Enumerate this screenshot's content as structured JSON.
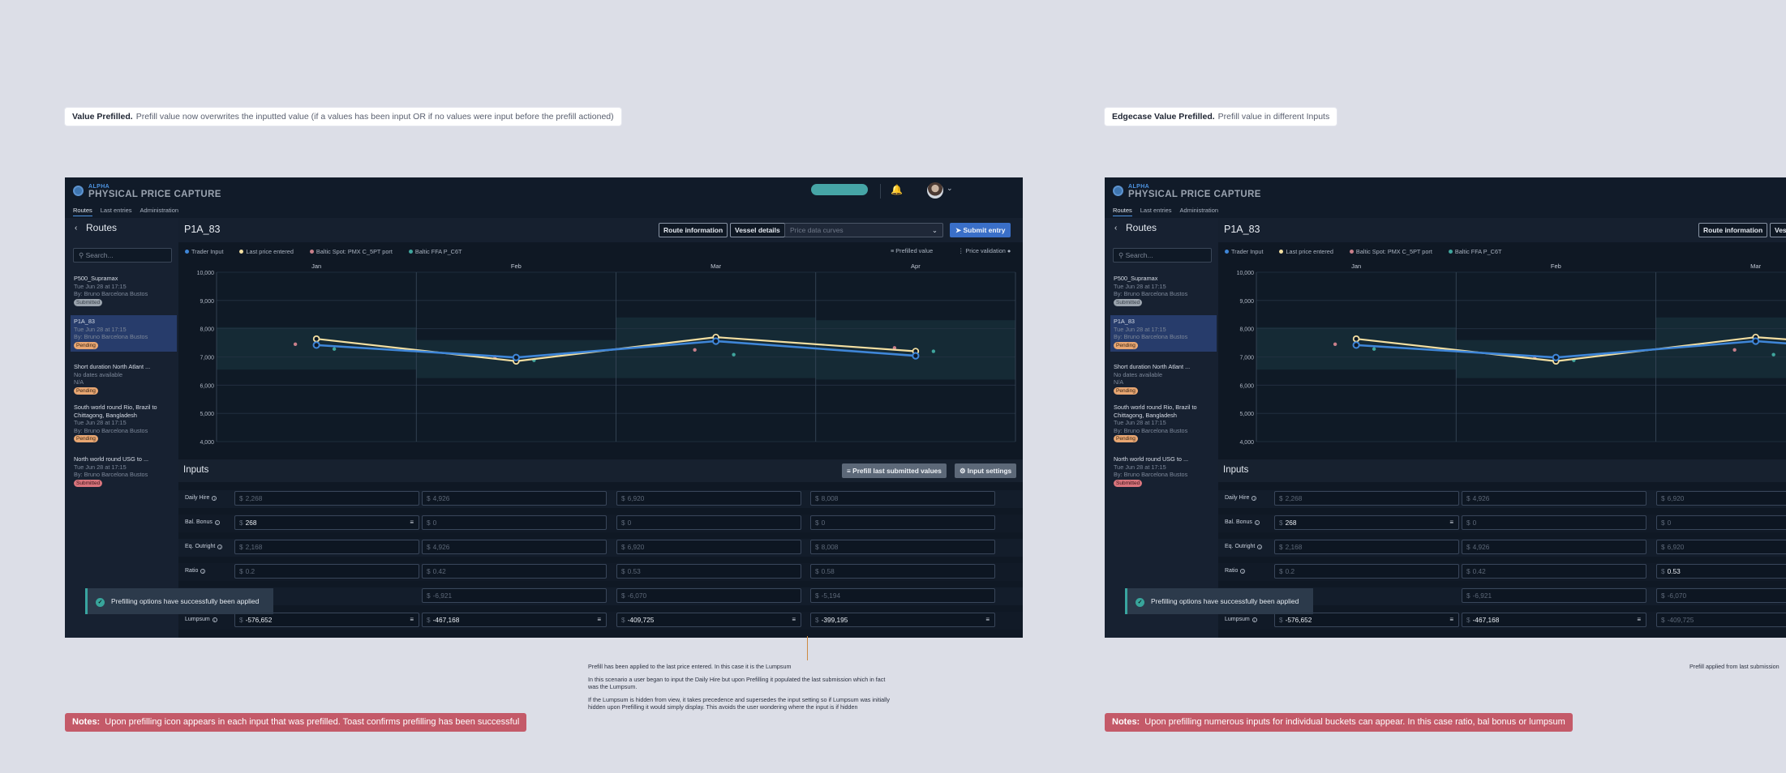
{
  "left": {
    "tag": {
      "bold": "Value Prefilled.",
      "text": "Prefill value now overwrites the inputted value (if a values has been input OR if no values were input before the prefill actioned)"
    },
    "note": {
      "bold": "Notes:",
      "text": "Upon prefilling icon appears in each input that was prefilled. Toast confirms prefilling has been successful"
    },
    "annotation": {
      "p1": "Prefill has been applied to the last price entered. In this case it is the Lumpsum",
      "p2": "In this scenario a user began to input the Daily Hire but upon Prefilling it populated the last submission which in fact was the Lumpsum.",
      "p3": "If the Lumpsum is hidden from view, it takes precedence and supersedes the input setting so if Lumpsum was initially hidden upon Prefilling it would simply display. This avoids the user wondering where the input is if hidden"
    },
    "inputs": [
      {
        "label": "Daily Hire",
        "cells": [
          {
            "v": "2,268",
            "e": false,
            "p": false
          },
          {
            "v": "4,926",
            "e": false,
            "p": false
          },
          {
            "v": "6,920",
            "e": false,
            "p": false
          },
          {
            "v": "8,008",
            "e": false,
            "p": false
          }
        ]
      },
      {
        "label": "Bal. Bonus",
        "cells": [
          {
            "v": "268",
            "e": true,
            "p": true
          },
          {
            "v": "0",
            "e": false,
            "p": false
          },
          {
            "v": "0",
            "e": false,
            "p": false
          },
          {
            "v": "0",
            "e": false,
            "p": false
          }
        ]
      },
      {
        "label": "Eq. Outright",
        "cells": [
          {
            "v": "2,168",
            "e": false,
            "p": false
          },
          {
            "v": "4,926",
            "e": false,
            "p": false
          },
          {
            "v": "6,920",
            "e": false,
            "p": false
          },
          {
            "v": "8,008",
            "e": false,
            "p": false
          }
        ]
      },
      {
        "label": "Ratio",
        "cells": [
          {
            "v": "0.2",
            "e": false,
            "p": false
          },
          {
            "v": "0.42",
            "e": false,
            "p": false
          },
          {
            "v": "0.53",
            "e": false,
            "p": false
          },
          {
            "v": "0.58",
            "e": false,
            "p": false
          }
        ]
      },
      {
        "label": "",
        "cells": [
          {
            "v": "",
            "e": false,
            "p": false
          },
          {
            "v": "-6,921",
            "e": false,
            "p": false
          },
          {
            "v": "-6,070",
            "e": false,
            "p": false
          },
          {
            "v": "-5,194",
            "e": false,
            "p": false
          }
        ]
      },
      {
        "label": "Lumpsum",
        "cells": [
          {
            "v": "-576,652",
            "e": true,
            "p": true
          },
          {
            "v": "-467,168",
            "e": true,
            "p": true
          },
          {
            "v": "-409,725",
            "e": true,
            "p": true
          },
          {
            "v": "-399,195",
            "e": true,
            "p": true
          }
        ]
      }
    ]
  },
  "right": {
    "tag": {
      "bold": "Edgecase Value Prefilled.",
      "text": "Prefill value in different Inputs"
    },
    "note": {
      "bold": "Notes:",
      "text": "Upon prefilling numerous inputs for individual buckets can appear. In this case ratio, bal bonus or lumpsum"
    },
    "annotation": {
      "p1": "Prefill applied from last submission"
    },
    "inputs": [
      {
        "label": "Daily Hire",
        "cells": [
          {
            "v": "2,268",
            "e": false,
            "p": false
          },
          {
            "v": "4,926",
            "e": false,
            "p": false
          },
          {
            "v": "6,920",
            "e": false,
            "p": false
          }
        ]
      },
      {
        "label": "Bal. Bonus",
        "cells": [
          {
            "v": "268",
            "e": true,
            "p": true
          },
          {
            "v": "0",
            "e": false,
            "p": false
          },
          {
            "v": "0",
            "e": false,
            "p": false
          }
        ]
      },
      {
        "label": "Eq. Outright",
        "cells": [
          {
            "v": "2,168",
            "e": false,
            "p": false
          },
          {
            "v": "4,926",
            "e": false,
            "p": false
          },
          {
            "v": "6,920",
            "e": false,
            "p": false
          }
        ]
      },
      {
        "label": "Ratio",
        "cells": [
          {
            "v": "0.2",
            "e": false,
            "p": false
          },
          {
            "v": "0.42",
            "e": false,
            "p": false
          },
          {
            "v": "0.53",
            "e": true,
            "p": false
          }
        ]
      },
      {
        "label": "",
        "cells": [
          {
            "v": "",
            "e": false,
            "p": false
          },
          {
            "v": "-6,921",
            "e": false,
            "p": false
          },
          {
            "v": "-6,070",
            "e": false,
            "p": false
          }
        ]
      },
      {
        "label": "Lumpsum",
        "cells": [
          {
            "v": "-576,652",
            "e": true,
            "p": true
          },
          {
            "v": "-467,168",
            "e": true,
            "p": true
          },
          {
            "v": "-409,725",
            "e": false,
            "p": false
          }
        ]
      }
    ]
  },
  "app": {
    "brand_small": "ALPHA",
    "brand": "PHYSICAL PRICE CAPTURE",
    "nav": [
      "Routes",
      "Last entries",
      "Administration"
    ],
    "sidebar_title": "Routes",
    "search_placeholder": "Search...",
    "routes": [
      {
        "name": "P500_Supramax",
        "date": "Tue Jun 28 at 17:15",
        "by": "By: Bruno Barcelona Bustos",
        "status": "Submitted",
        "kind": "sub"
      },
      {
        "name": "P1A_83",
        "date": "Tue Jun 28 at 17:15",
        "by": "By: Bruno Barcelona Bustos",
        "status": "Pending",
        "kind": "pen"
      },
      {
        "name": "Short duration North Atlant ...",
        "date": "No dates available",
        "by": "N/A",
        "status": "Pending",
        "kind": "pen"
      },
      {
        "name": "South world round Rio, Brazil to",
        "name2": "Chittagong, Bangladesh",
        "date": "Tue Jun 28 at 17:15",
        "by": "By: Bruno Barcelona Bustos",
        "status": "Pending",
        "kind": "pen"
      },
      {
        "name": "North world round USG to ...",
        "date": "Tue Jun 28 at 17:15",
        "by": "By: Bruno Barcelona Bustos",
        "status": "Submitted",
        "kind": "red"
      }
    ],
    "route_title": "P1A_83",
    "btn_route_info": "Route information",
    "btn_vessel": "Vessel details",
    "price_curves_placeholder": "Price data curves",
    "btn_submit": "Submit entry",
    "legend": [
      "Trader Input",
      "Last price entered",
      "Baltic Spot: PMX C_5PT port",
      "Baltic FFA P_C6T"
    ],
    "prefilled_value": "Prefilled value",
    "price_validation": "Price validation",
    "inputs_title": "Inputs",
    "btn_prefill": "Prefill last submitted values",
    "btn_settings": "Input settings",
    "toast": "Prefilling options have successfully been applied",
    "currency": "$"
  },
  "colors": {
    "trader": "#3f86d8",
    "last_price": "#f3dfa2",
    "baltic_spot": "#c97f8a",
    "baltic_ffa": "#3fa59d",
    "accent": "#3a6fc8"
  },
  "chart_data": {
    "type": "line",
    "categories": [
      "Jan",
      "Feb",
      "Mar",
      "Apr"
    ],
    "ylim": [
      4000,
      10000
    ],
    "yticks": [
      "4,000",
      "5,000",
      "6,000",
      "7,000",
      "8,000",
      "9,000",
      "10,000"
    ],
    "bands": [
      [
        6550,
        8050
      ],
      [
        6250,
        7600
      ],
      [
        6250,
        8400
      ],
      [
        6200,
        8300
      ]
    ],
    "series": [
      {
        "name": "Trader Input",
        "values": [
          7420,
          6980,
          7560,
          7040
        ]
      },
      {
        "name": "Last price entered",
        "values": [
          7640,
          6850,
          7700,
          7200
        ]
      },
      {
        "name": "Baltic Spot: PMX C_5PT port",
        "values": [
          7450,
          7000,
          7250,
          7320
        ]
      },
      {
        "name": "Baltic FFA P_C6T",
        "values": [
          7280,
          6880,
          7080,
          7200
        ]
      }
    ]
  }
}
